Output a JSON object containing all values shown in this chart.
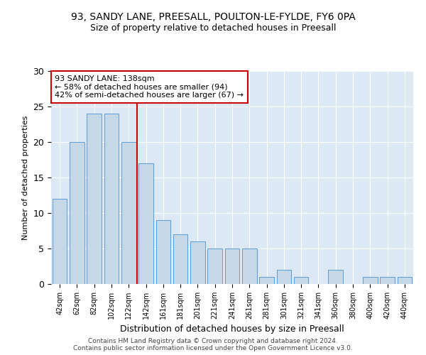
{
  "title_line1": "93, SANDY LANE, PREESALL, POULTON-LE-FYLDE, FY6 0PA",
  "title_line2": "Size of property relative to detached houses in Preesall",
  "xlabel": "Distribution of detached houses by size in Preesall",
  "ylabel": "Number of detached properties",
  "categories": [
    "42sqm",
    "62sqm",
    "82sqm",
    "102sqm",
    "122sqm",
    "142sqm",
    "161sqm",
    "181sqm",
    "201sqm",
    "221sqm",
    "241sqm",
    "261sqm",
    "281sqm",
    "301sqm",
    "321sqm",
    "341sqm",
    "360sqm",
    "380sqm",
    "400sqm",
    "420sqm",
    "440sqm"
  ],
  "values": [
    12,
    20,
    24,
    24,
    20,
    17,
    9,
    7,
    6,
    5,
    5,
    5,
    1,
    2,
    1,
    0,
    2,
    0,
    1,
    1,
    1
  ],
  "bar_color": "#c5d8e8",
  "bar_edge_color": "#5b9bd5",
  "vline_index": 4.5,
  "vline_color": "#cc0000",
  "annotation_text": "93 SANDY LANE: 138sqm\n← 58% of detached houses are smaller (94)\n42% of semi-detached houses are larger (67) →",
  "annotation_box_color": "#ffffff",
  "annotation_box_edge": "#cc0000",
  "ylim": [
    0,
    30
  ],
  "yticks": [
    0,
    5,
    10,
    15,
    20,
    25,
    30
  ],
  "bg_color": "#dce9f5",
  "footer": "Contains HM Land Registry data © Crown copyright and database right 2024.\nContains public sector information licensed under the Open Government Licence v3.0."
}
